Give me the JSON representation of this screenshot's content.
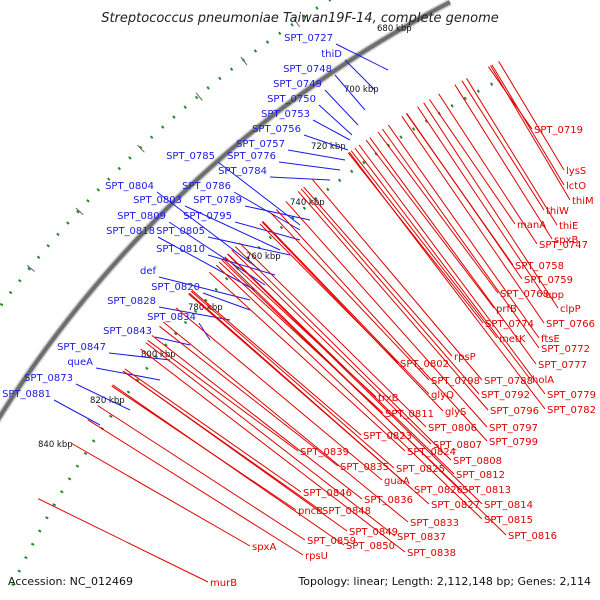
{
  "title": "Streptococcus pneumoniae Taiwan19F-14, complete genome",
  "footer": {
    "accession": "Accession: NC_012469",
    "summary": "Topology: linear; Length: 2,112,148 bp; Genes: 2,114"
  },
  "ticks": [
    "680 kbp",
    "700 kbp",
    "720 kbp",
    "740 kbp",
    "760 kbp",
    "780 kbp",
    "800 kbp",
    "820 kbp",
    "840 kbp"
  ],
  "left_labels": [
    "SPT_0727",
    "thiD",
    "SPT_0748",
    "SPT_0749",
    "SPT_0750",
    "SPT_0753",
    "SPT_0756",
    "SPT_0757",
    "SPT_0785",
    "SPT_0776",
    "SPT_0784",
    "SPT_0804",
    "SPT_0786",
    "SPT_0803",
    "SPT_0789",
    "SPT_0809",
    "SPT_0795",
    "SPT_0818",
    "SPT_0805",
    "SPT_0810",
    "def",
    "SPT_0820",
    "SPT_0828",
    "SPT_0834",
    "SPT_0843",
    "SPT_0847",
    "queA",
    "SPT_0873",
    "SPT_0881"
  ],
  "right_labels": [
    "SPT_0719",
    "lysS",
    "lctO",
    "thiM",
    "thiW",
    "thiE",
    "manA",
    "spxB",
    "SPT_0747",
    "SPT_0758",
    "SPT_0759",
    "upp",
    "SPT_0768",
    "clpP",
    "prfB",
    "SPT_0766",
    "SPT_0774",
    "ftsE",
    "metK",
    "SPT_0772",
    "rpsP",
    "SPT_0777",
    "SPT_0802",
    "holA",
    "SPT_0798",
    "SPT_0788",
    "glyQ",
    "SPT_0792",
    "SPT_0779",
    "SPT_0782",
    "trxB",
    "glyS",
    "SPT_0796",
    "SPT_0811",
    "SPT_0806",
    "SPT_0797",
    "SPT_0823",
    "SPT_0807",
    "SPT_0799",
    "SPT_0824",
    "SPT_0808",
    "SPT_0839",
    "SPT_0835",
    "SPT_0825",
    "SPT_0812",
    "guaA",
    "SPT_0826",
    "SPT_0813",
    "SPT_0846",
    "SPT_0836",
    "SPT_0827",
    "SPT_0814",
    "SPT_0848",
    "pncB",
    "SPT_0833",
    "SPT_0815",
    "SPT_0849",
    "SPT_0837",
    "SPT_0816",
    "SPT_0859",
    "SPT_0850",
    "spxA",
    "rpsU",
    "SPT_0838",
    "murB"
  ],
  "colors": {
    "left_label": "#1a1ae6",
    "right_label": "#e00000",
    "backbone": "#6e6e6e",
    "gc": "#2a8a2a"
  }
}
